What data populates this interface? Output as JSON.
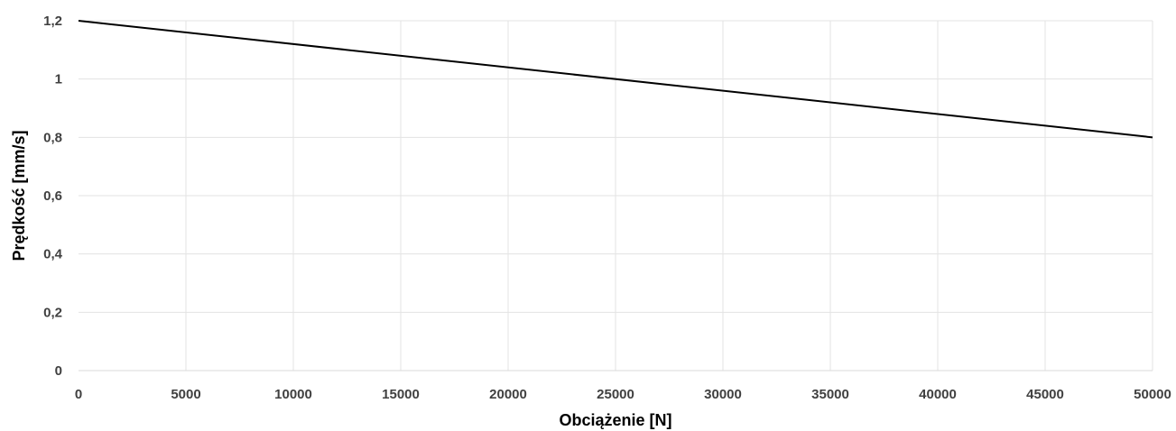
{
  "chart_data": {
    "type": "line",
    "xlabel": "Obciążenie [N]",
    "ylabel": "Prędkość [mm/s]",
    "xlim": [
      0,
      50000
    ],
    "ylim": [
      0,
      1.2
    ],
    "x_ticks": [
      "0",
      "5000",
      "10000",
      "15000",
      "20000",
      "25000",
      "30000",
      "35000",
      "40000",
      "45000",
      "50000"
    ],
    "y_ticks": [
      "0",
      "0,2",
      "0,4",
      "0,6",
      "0,8",
      "1",
      "1,2"
    ],
    "grid": true,
    "series": [
      {
        "x": [
          0,
          50000
        ],
        "y": [
          1.2,
          0.8
        ],
        "color": "#000000"
      }
    ]
  }
}
